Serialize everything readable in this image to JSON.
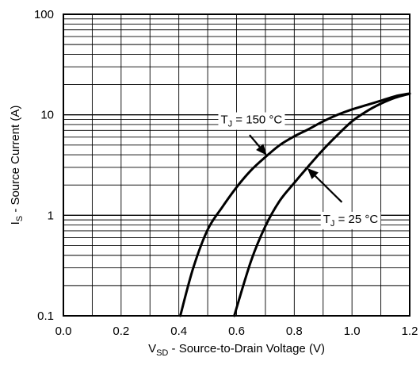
{
  "chart_data": {
    "type": "line",
    "title": "",
    "xlabel": {
      "main": "V",
      "sub": "SD",
      "rest": " - Source-to-Drain Voltage (V)"
    },
    "ylabel": {
      "main": "I",
      "sub": "S",
      "rest": " - Source Current (A)"
    },
    "xlim": [
      0.0,
      1.2
    ],
    "ylim": [
      0.1,
      100
    ],
    "yscale": "log",
    "grid": true,
    "x_ticks": [
      {
        "v": 0.0,
        "label": "0.0"
      },
      {
        "v": 0.2,
        "label": "0.2"
      },
      {
        "v": 0.4,
        "label": "0.4"
      },
      {
        "v": 0.6,
        "label": "0.6"
      },
      {
        "v": 0.8,
        "label": "0.8"
      },
      {
        "v": 1.0,
        "label": "1.0"
      },
      {
        "v": 1.2,
        "label": "1.2"
      }
    ],
    "y_ticks": [
      {
        "v": 0.1,
        "label": "0.1"
      },
      {
        "v": 1,
        "label": "1"
      },
      {
        "v": 10,
        "label": "10"
      },
      {
        "v": 100,
        "label": "100"
      }
    ],
    "series": [
      {
        "name": "TJ = 150 °C",
        "color": "#000000",
        "x": [
          0.405,
          0.45,
          0.5,
          0.55,
          0.6,
          0.65,
          0.7,
          0.75,
          0.8,
          0.85,
          0.9,
          0.95,
          1.0,
          1.05,
          1.1,
          1.15,
          1.2
        ],
        "y": [
          0.1,
          0.3,
          0.72,
          1.2,
          1.9,
          2.8,
          3.8,
          5.0,
          6.1,
          7.2,
          8.6,
          10.0,
          11.3,
          12.5,
          13.8,
          15.3,
          16.3
        ]
      },
      {
        "name": "TJ = 25 °C",
        "color": "#000000",
        "x": [
          0.592,
          0.65,
          0.7,
          0.75,
          0.8,
          0.85,
          0.9,
          0.95,
          1.0,
          1.05,
          1.1,
          1.15,
          1.2
        ],
        "y": [
          0.1,
          0.35,
          0.78,
          1.4,
          2.1,
          3.1,
          4.5,
          6.3,
          8.6,
          10.8,
          12.9,
          14.8,
          16.2
        ]
      }
    ],
    "annotations": [
      {
        "label_main": "T",
        "label_sub": "J",
        "label_rest": " = 150 °C",
        "series": 0,
        "text_x": 0.545,
        "text_y": 8.2,
        "arrow_from": [
          0.645,
          6.3
        ],
        "arrow_to": [
          0.705,
          3.95
        ]
      },
      {
        "label_main": "T",
        "label_sub": "J",
        "label_rest": " = 25 °C",
        "series": 1,
        "text_x": 0.9,
        "text_y": 0.84,
        "arrow_from": [
          0.965,
          1.35
        ],
        "arrow_to": [
          0.845,
          2.95
        ]
      }
    ]
  }
}
